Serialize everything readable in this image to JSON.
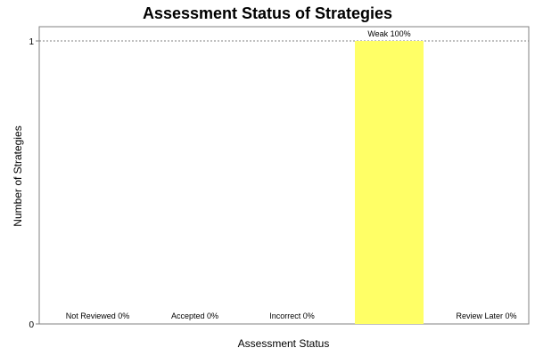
{
  "chart_data": {
    "type": "bar",
    "title": "Assessment Status of Strategies",
    "xlabel": "Assessment Status",
    "ylabel": "Number of Strategies",
    "ylim": [
      0,
      1
    ],
    "yticks": [
      "0",
      "1"
    ],
    "grid": false,
    "categories": [
      "Not Reviewed",
      "Accepted",
      "Incorrect",
      "Weak",
      "Review Later"
    ],
    "values": [
      0,
      0,
      0,
      1,
      0
    ],
    "data_labels": [
      "Not Reviewed 0%",
      "Accepted 0%",
      "Incorrect 0%",
      "Weak 100%",
      "Review Later 0%"
    ],
    "bar_color": "#ffff66",
    "reference_line": {
      "value": 1,
      "style": "dashed",
      "color": "#808080"
    }
  }
}
